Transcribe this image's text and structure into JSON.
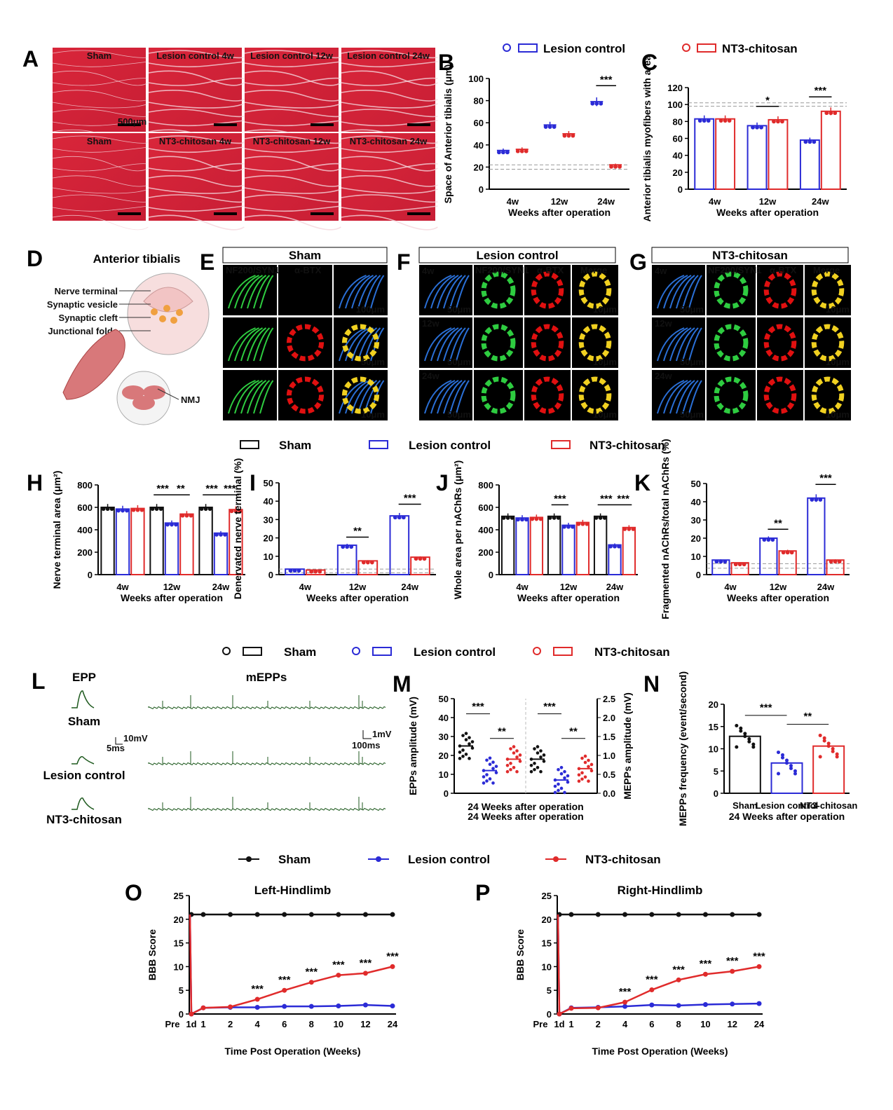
{
  "panels": {
    "A": {
      "letter": "A",
      "top_labels": [
        "Sham",
        "Lesion control 4w",
        "Lesion control 12w",
        "Lesion control 24w"
      ],
      "bottom_labels": [
        "Sham",
        "NT3-chitosan 4w",
        "NT3-chitosan 12w",
        "NT3-chitosan 24w"
      ],
      "scale": "500μm"
    },
    "D": {
      "letter": "D",
      "title": "Anterior tibialis",
      "labels": [
        "Nerve terminal",
        "Synaptic vesicle",
        "Synaptic cleft",
        "Junctional folds"
      ],
      "nmj": "NMJ"
    },
    "E": {
      "letter": "E",
      "title": "Sham",
      "channels": [
        "NF200/SYN1",
        "α-BTX"
      ],
      "scales": [
        "100μm",
        "50μm",
        "10μm"
      ]
    },
    "F": {
      "letter": "F",
      "title": "Lesion control",
      "channels": [
        "NF200/SYN1",
        "α-BTX",
        "Merge"
      ],
      "weeks": [
        "4w",
        "12w",
        "24w"
      ],
      "scales": [
        "50μm",
        "10μm"
      ]
    },
    "G": {
      "letter": "G",
      "title": "NT3-chitosan",
      "channels": [
        "NF200/SYN1",
        "α-BTX",
        "Merge"
      ],
      "weeks": [
        "4w",
        "12w",
        "24w"
      ],
      "scales": [
        "50μm",
        "10μm"
      ]
    },
    "L": {
      "letter": "L",
      "epp": "EPP",
      "mepps": "mEPPs",
      "rows": [
        "Sham",
        "Lesion control",
        "NT3-chitosan"
      ],
      "scale_left": {
        "v": "10mV",
        "t": "5ms"
      },
      "scale_right": {
        "v": "1mV",
        "t": "100ms"
      }
    }
  },
  "legends": {
    "top": {
      "lesion": "Lesion control",
      "nt3": "NT3-chitosan"
    },
    "mid": {
      "sham": "Sham",
      "lesion": "Lesion control",
      "nt3": "NT3-chitosan"
    },
    "low": {
      "sham": "Sham",
      "lesion": "Lesion control",
      "nt3": "NT3-chitosan"
    },
    "bbb": {
      "sham": "Sham",
      "lesion": "Lesion control",
      "nt3": "NT3-chitosan"
    }
  },
  "colors": {
    "sham": "#111111",
    "lesion": "#2b2bd6",
    "nt3": "#e02b2b"
  },
  "chart_data": [
    {
      "id": "B",
      "letter": "B",
      "type": "scatter",
      "categories": [
        "4w",
        "12w",
        "24w"
      ],
      "xlabel": "Weeks after operation",
      "ylabel": "Space of Anterior tibialis (μm)",
      "ylim": [
        0,
        100
      ],
      "yticks": [
        0,
        20,
        40,
        60,
        80,
        100
      ],
      "series": [
        {
          "name": "Lesion control",
          "values": [
            35,
            58,
            79
          ]
        },
        {
          "name": "NT3-chitosan",
          "values": [
            36,
            50,
            22
          ]
        }
      ],
      "sig": [
        {
          "group": "24w",
          "text": "***"
        }
      ]
    },
    {
      "id": "C",
      "letter": "C",
      "type": "bar",
      "categories": [
        "4w",
        "12w",
        "24w"
      ],
      "xlabel": "Weeks after operation",
      "ylabel": "Anterior tibialis myofibers with area",
      "ylim": [
        0,
        120
      ],
      "yticks": [
        0,
        20,
        40,
        60,
        80,
        100,
        120
      ],
      "series": [
        {
          "name": "Lesion control",
          "values": [
            83,
            75,
            58
          ]
        },
        {
          "name": "NT3-chitosan",
          "values": [
            83,
            82,
            92
          ]
        }
      ],
      "sig": [
        {
          "group": "12w",
          "text": "*"
        },
        {
          "group": "24w",
          "text": "***"
        }
      ]
    },
    {
      "id": "H",
      "letter": "H",
      "type": "bar",
      "categories": [
        "4w",
        "12w",
        "24w"
      ],
      "xlabel": "Weeks after operation",
      "ylabel": "Nerve terminal area (μm²)",
      "ylim": [
        0,
        800
      ],
      "yticks": [
        0,
        200,
        400,
        600,
        800
      ],
      "series": [
        {
          "name": "Sham",
          "values": [
            600,
            600,
            600
          ]
        },
        {
          "name": "Lesion control",
          "values": [
            585,
            460,
            370
          ]
        },
        {
          "name": "NT3-chitosan",
          "values": [
            590,
            540,
            580
          ]
        }
      ],
      "sig": [
        {
          "group": "12w",
          "text": "***"
        },
        {
          "group": "12w",
          "text": "**"
        },
        {
          "group": "24w",
          "text": "***"
        },
        {
          "group": "24w",
          "text": "***"
        }
      ]
    },
    {
      "id": "I",
      "letter": "I",
      "type": "bar",
      "categories": [
        "4w",
        "12w",
        "24w"
      ],
      "xlabel": "Weeks after operation",
      "ylabel": "Denervated nerve terminal (%)",
      "ylim": [
        0,
        50
      ],
      "yticks": [
        0,
        10,
        20,
        30,
        40,
        50
      ],
      "series": [
        {
          "name": "Lesion control",
          "values": [
            3,
            16,
            32
          ]
        },
        {
          "name": "NT3-chitosan",
          "values": [
            2.5,
            7.5,
            9.5
          ]
        }
      ],
      "sig": [
        {
          "group": "12w",
          "text": "**"
        },
        {
          "group": "24w",
          "text": "***"
        }
      ]
    },
    {
      "id": "J",
      "letter": "J",
      "type": "bar",
      "categories": [
        "4w",
        "12w",
        "24w"
      ],
      "xlabel": "Weeks after operation",
      "ylabel": "Whole area per nAChRs (μm²)",
      "ylim": [
        0,
        800
      ],
      "yticks": [
        0,
        200,
        400,
        600,
        800
      ],
      "series": [
        {
          "name": "Sham",
          "values": [
            520,
            520,
            520
          ]
        },
        {
          "name": "Lesion control",
          "values": [
            505,
            440,
            265
          ]
        },
        {
          "name": "NT3-chitosan",
          "values": [
            510,
            465,
            420
          ]
        }
      ],
      "sig": [
        {
          "group": "12w",
          "text": "***"
        },
        {
          "group": "24w",
          "text": "***"
        },
        {
          "group": "24w",
          "text": "***"
        }
      ]
    },
    {
      "id": "K",
      "letter": "K",
      "type": "bar",
      "categories": [
        "4w",
        "12w",
        "24w"
      ],
      "xlabel": "Weeks after operation",
      "ylabel": "Fragmented nAChRs/total nAChRs (%)",
      "ylim": [
        0,
        50
      ],
      "yticks": [
        0,
        10,
        20,
        30,
        40,
        50
      ],
      "series": [
        {
          "name": "Lesion control",
          "values": [
            8,
            20,
            42
          ]
        },
        {
          "name": "NT3-chitosan",
          "values": [
            6.5,
            13,
            8
          ]
        }
      ],
      "sig": [
        {
          "group": "12w",
          "text": "**"
        },
        {
          "group": "24w",
          "text": "***"
        }
      ]
    },
    {
      "id": "M",
      "letter": "M",
      "type": "scatter",
      "categories": [
        "Sham",
        "Lesion control",
        "NT3-chitosan"
      ],
      "xlabel": "24 Weeks after operation",
      "ylabel": "EPPs amplitude (mV)",
      "y2label": "MEPPs amplitude (mV)",
      "ylim": [
        0,
        50
      ],
      "yticks": [
        0,
        10,
        20,
        30,
        40,
        50
      ],
      "y2ticks": [
        "0.0",
        "0.5",
        "1.0",
        "1.5",
        "2.0",
        "2.5"
      ],
      "series": [
        {
          "name": "EPPs amplitude",
          "values": [
            25,
            12,
            18
          ]
        },
        {
          "name": "MEPPs amplitude",
          "values": [
            0.9,
            0.35,
            0.65
          ]
        }
      ],
      "sig": [
        {
          "text": "***"
        },
        {
          "text": "**"
        },
        {
          "text": "***"
        },
        {
          "text": "**"
        }
      ]
    },
    {
      "id": "N",
      "letter": "N",
      "type": "bar",
      "categories": [
        "Sham",
        "Lesion control",
        "NT3-chitosan"
      ],
      "xlabel": "24 Weeks after operation",
      "ylabel": "MEPPs frequency (event/second)",
      "ylim": [
        0,
        20
      ],
      "yticks": [
        0,
        5,
        10,
        15,
        20
      ],
      "values": [
        12.8,
        6.8,
        10.6
      ],
      "sig": [
        {
          "text": "***"
        },
        {
          "text": "**"
        }
      ]
    },
    {
      "id": "O",
      "letter": "O",
      "type": "line",
      "title": "Left-Hindlimb",
      "x": [
        "Pre",
        "1d",
        "1",
        "2",
        "4",
        "6",
        "8",
        "10",
        "12",
        "24"
      ],
      "xlabel": "Time Post Operation (Weeks)",
      "ylabel": "BBB Score",
      "ylim": [
        0,
        25
      ],
      "yticks": [
        0,
        5,
        10,
        15,
        20,
        25
      ],
      "series": [
        {
          "name": "Sham",
          "values": [
            21,
            21,
            21,
            21,
            21,
            21,
            21,
            21,
            21,
            21
          ]
        },
        {
          "name": "Lesion control",
          "values": [
            21,
            0,
            1.3,
            1.4,
            1.4,
            1.6,
            1.6,
            1.7,
            1.9,
            1.7
          ]
        },
        {
          "name": "NT3-chitosan",
          "values": [
            21,
            0,
            1.3,
            1.5,
            3.1,
            5.0,
            6.7,
            8.2,
            8.6,
            10.0
          ]
        }
      ],
      "sig": [
        "",
        "",
        "",
        "",
        "***",
        "***",
        "***",
        "***",
        "***",
        "***"
      ]
    },
    {
      "id": "P",
      "letter": "P",
      "type": "line",
      "title": "Right-Hindlimb",
      "x": [
        "Pre",
        "1d",
        "1",
        "2",
        "4",
        "6",
        "8",
        "10",
        "12",
        "24"
      ],
      "xlabel": "Time Post Operation (Weeks)",
      "ylabel": "BBB Score",
      "ylim": [
        0,
        25
      ],
      "yticks": [
        0,
        5,
        10,
        15,
        20,
        25
      ],
      "series": [
        {
          "name": "Sham",
          "values": [
            21,
            21,
            21,
            21,
            21,
            21,
            21,
            21,
            21,
            21
          ]
        },
        {
          "name": "Lesion control",
          "values": [
            21,
            0,
            1.3,
            1.4,
            1.6,
            1.9,
            1.8,
            2.0,
            2.1,
            2.2
          ]
        },
        {
          "name": "NT3-chitosan",
          "values": [
            21,
            0,
            1.2,
            1.3,
            2.5,
            5.1,
            7.2,
            8.4,
            9.0,
            10.0
          ]
        }
      ],
      "sig": [
        "",
        "",
        "",
        "",
        "***",
        "***",
        "***",
        "***",
        "***",
        "***"
      ]
    }
  ]
}
